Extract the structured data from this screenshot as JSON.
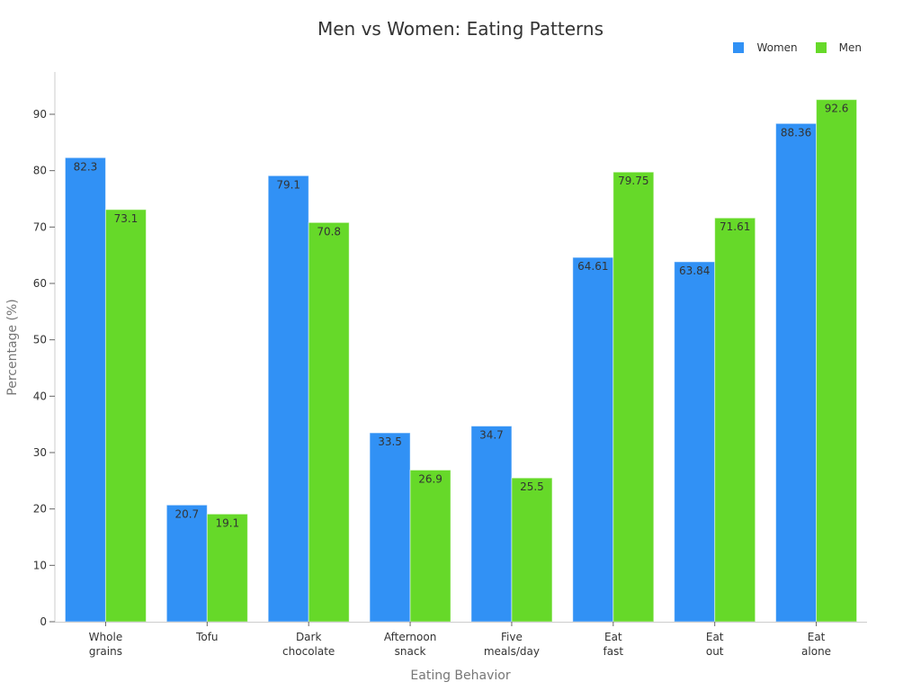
{
  "chart_data": {
    "type": "bar",
    "title": "Men vs Women: Eating Patterns",
    "xlabel": "Eating Behavior",
    "ylabel": "Percentage (%)",
    "ylim": [
      0,
      97
    ],
    "yticks": [
      0,
      10,
      20,
      30,
      40,
      50,
      60,
      70,
      80,
      90
    ],
    "grid": false,
    "legend_position": "top-right",
    "categories": [
      "Whole grains",
      "Tofu",
      "Dark chocolate",
      "Afternoon snack",
      "Five meals/day",
      "Eat fast",
      "Eat out",
      "Eat alone"
    ],
    "category_lines": [
      [
        "Whole",
        "grains"
      ],
      [
        "Tofu"
      ],
      [
        "Dark",
        "chocolate"
      ],
      [
        "Afternoon",
        "snack"
      ],
      [
        "Five",
        "meals/day"
      ],
      [
        "Eat",
        "fast"
      ],
      [
        "Eat",
        "out"
      ],
      [
        "Eat",
        "alone"
      ]
    ],
    "series": [
      {
        "name": "Women",
        "color": "#3191f5",
        "values": [
          82.3,
          20.7,
          79.1,
          33.5,
          34.7,
          64.61,
          63.84,
          88.36
        ],
        "labels": [
          "82.3",
          "20.7",
          "79.1",
          "33.5",
          "34.7",
          "64.61",
          "63.84",
          "88.36"
        ]
      },
      {
        "name": "Men",
        "color": "#66d929",
        "values": [
          73.1,
          19.1,
          70.8,
          26.9,
          25.5,
          79.75,
          71.61,
          92.6
        ],
        "labels": [
          "73.1",
          "19.1",
          "70.8",
          "26.9",
          "25.5",
          "79.75",
          "71.61",
          "92.6"
        ]
      }
    ]
  },
  "legend": {
    "items": [
      {
        "label": "Women",
        "color": "#3191f5"
      },
      {
        "label": "Men",
        "color": "#66d929"
      }
    ]
  }
}
